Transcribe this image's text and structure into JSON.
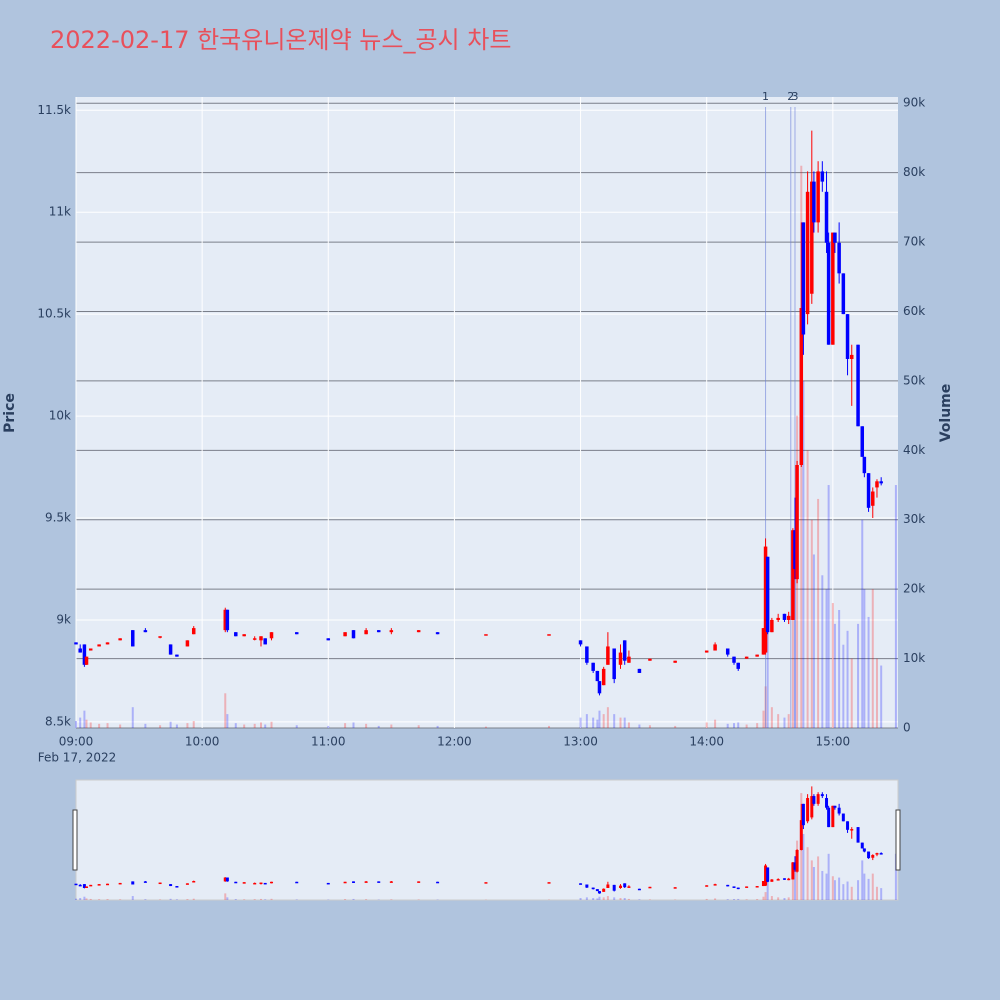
{
  "chart_data": {
    "type": "candlestick",
    "title": "2022-02-17 한국유니온제약 뉴스_공시 차트",
    "y_label": "Price",
    "y2_label": "Volume",
    "x_date_label": "Feb 17, 2022",
    "up_color": "#ff0000",
    "down_color": "#0000ff",
    "xlim": [
      "2022-02-17 09:00",
      "2022-02-17 15:31"
    ],
    "xticks": [
      {
        "value": "2022-02-17 09:00",
        "label": "09:00"
      },
      {
        "value": "2022-02-17 10:00",
        "label": "10:00"
      },
      {
        "value": "2022-02-17 11:00",
        "label": "11:00"
      },
      {
        "value": "2022-02-17 12:00",
        "label": "12:00"
      },
      {
        "value": "2022-02-17 13:00",
        "label": "13:00"
      },
      {
        "value": "2022-02-17 14:00",
        "label": "14:00"
      },
      {
        "value": "2022-02-17 15:00",
        "label": "15:00"
      }
    ],
    "ylim": [
      8470,
      11565
    ],
    "yticks": [
      {
        "value": 8500,
        "label": "8.5k"
      },
      {
        "value": 9000,
        "label": "9k"
      },
      {
        "value": 9500,
        "label": "9.5k"
      },
      {
        "value": 10000,
        "label": "10k"
      },
      {
        "value": 10500,
        "label": "10.5k"
      },
      {
        "value": 11000,
        "label": "11k"
      },
      {
        "value": 11500,
        "label": "11.5k"
      }
    ],
    "y2lim": [
      0,
      90900
    ],
    "y2ticks": [
      0,
      {
        "value": 10000,
        "label": "10k"
      },
      {
        "value": 20000,
        "label": "20k"
      },
      {
        "value": 30000,
        "label": "30k"
      },
      {
        "value": 40000,
        "label": "40k"
      },
      {
        "value": 50000,
        "label": "50k"
      },
      {
        "value": 60000,
        "label": "60k"
      },
      {
        "value": 70000,
        "label": "70k"
      },
      {
        "value": 80000,
        "label": "80k"
      },
      {
        "value": 90000,
        "label": "90k"
      }
    ],
    "x": [
      "2022-02-17 09:00",
      "2022-02-17 09:02",
      "2022-02-17 09:04",
      "2022-02-17 09:05",
      "2022-02-17 09:07",
      "2022-02-17 09:11",
      "2022-02-17 09:15",
      "2022-02-17 09:21",
      "2022-02-17 09:27",
      "2022-02-17 09:33",
      "2022-02-17 09:40",
      "2022-02-17 09:45",
      "2022-02-17 09:48",
      "2022-02-17 09:53",
      "2022-02-17 09:56",
      "2022-02-17 10:11",
      "2022-02-17 10:12",
      "2022-02-17 10:16",
      "2022-02-17 10:20",
      "2022-02-17 10:25",
      "2022-02-17 10:28",
      "2022-02-17 10:30",
      "2022-02-17 10:33",
      "2022-02-17 10:45",
      "2022-02-17 11:00",
      "2022-02-17 11:08",
      "2022-02-17 11:12",
      "2022-02-17 11:18",
      "2022-02-17 11:24",
      "2022-02-17 11:30",
      "2022-02-17 11:43",
      "2022-02-17 11:52",
      "2022-02-17 12:15",
      "2022-02-17 12:45",
      "2022-02-17 13:00",
      "2022-02-17 13:03",
      "2022-02-17 13:06",
      "2022-02-17 13:08",
      "2022-02-17 13:09",
      "2022-02-17 13:11",
      "2022-02-17 13:13",
      "2022-02-17 13:16",
      "2022-02-17 13:19",
      "2022-02-17 13:21",
      "2022-02-17 13:23",
      "2022-02-17 13:28",
      "2022-02-17 13:33",
      "2022-02-17 13:45",
      "2022-02-17 14:00",
      "2022-02-17 14:04",
      "2022-02-17 14:10",
      "2022-02-17 14:13",
      "2022-02-17 14:15",
      "2022-02-17 14:19",
      "2022-02-17 14:24",
      "2022-02-17 14:27",
      "2022-02-17 14:28",
      "2022-02-17 14:29",
      "2022-02-17 14:31",
      "2022-02-17 14:34",
      "2022-02-17 14:37",
      "2022-02-17 14:39",
      "2022-02-17 14:41",
      "2022-02-17 14:42",
      "2022-02-17 14:43",
      "2022-02-17 14:45",
      "2022-02-17 14:46",
      "2022-02-17 14:48",
      "2022-02-17 14:50",
      "2022-02-17 14:51",
      "2022-02-17 14:53",
      "2022-02-17 14:55",
      "2022-02-17 14:57",
      "2022-02-17 14:58",
      "2022-02-17 15:00",
      "2022-02-17 15:01",
      "2022-02-17 15:03",
      "2022-02-17 15:05",
      "2022-02-17 15:07",
      "2022-02-17 15:09",
      "2022-02-17 15:12",
      "2022-02-17 15:14",
      "2022-02-17 15:15",
      "2022-02-17 15:17",
      "2022-02-17 15:19",
      "2022-02-17 15:21",
      "2022-02-17 15:23"
    ],
    "open": [
      8890,
      8860,
      8880,
      8780,
      8850,
      8870,
      8880,
      8900,
      8950,
      8950,
      8920,
      8880,
      8830,
      8870,
      8930,
      8950,
      9050,
      8940,
      8920,
      8910,
      8900,
      8910,
      8910,
      8940,
      8910,
      8920,
      8950,
      8930,
      8950,
      8940,
      8940,
      8940,
      8930,
      8930,
      8900,
      8870,
      8790,
      8750,
      8700,
      8680,
      8780,
      8860,
      8780,
      8900,
      8790,
      8760,
      8800,
      8790,
      8840,
      8850,
      8860,
      8820,
      8790,
      8810,
      8820,
      8830,
      8840,
      9310,
      8940,
      9000,
      9030,
      9000,
      9000,
      9440,
      9200,
      9760,
      10950,
      10500,
      10600,
      11150,
      10950,
      11200,
      11100,
      10850,
      10350,
      10900,
      10850,
      10700,
      10500,
      10280,
      10350,
      9950,
      9800,
      9720,
      9560,
      9650,
      9680
    ],
    "high": [
      8890,
      8880,
      8880,
      8820,
      8860,
      8880,
      8890,
      8910,
      8950,
      8960,
      8920,
      8880,
      8830,
      8900,
      8970,
      9060,
      9050,
      8940,
      8930,
      8920,
      8920,
      8910,
      8940,
      8940,
      8910,
      8940,
      8950,
      8960,
      8950,
      8960,
      8950,
      8940,
      8930,
      8930,
      8900,
      8870,
      8790,
      8750,
      8700,
      8770,
      8940,
      8860,
      8880,
      8900,
      8850,
      8760,
      8810,
      8800,
      8850,
      8890,
      8860,
      8820,
      8790,
      8820,
      8830,
      8960,
      9400,
      9310,
      9010,
      9030,
      9030,
      9040,
      9450,
      9600,
      9780,
      10950,
      10950,
      11200,
      11400,
      11200,
      11250,
      11250,
      11200,
      10900,
      10900,
      10900,
      10950,
      10700,
      10500,
      10350,
      10350,
      9950,
      9800,
      9720,
      9650,
      9690,
      9700
    ],
    "low": [
      8880,
      8840,
      8770,
      8780,
      8850,
      8870,
      8880,
      8900,
      8870,
      8940,
      8910,
      8830,
      8820,
      8870,
      8930,
      8940,
      8940,
      8920,
      8920,
      8900,
      8870,
      8880,
      8900,
      8930,
      8900,
      8920,
      8910,
      8930,
      8940,
      8930,
      8940,
      8930,
      8930,
      8930,
      8870,
      8780,
      8740,
      8700,
      8630,
      8680,
      8780,
      8690,
      8760,
      8780,
      8790,
      8740,
      8800,
      8790,
      8840,
      8850,
      8820,
      8780,
      8750,
      8810,
      8820,
      8830,
      8830,
      8930,
      8940,
      8990,
      8990,
      8980,
      9000,
      9200,
      9180,
      9750,
      10300,
      10450,
      10550,
      10900,
      10900,
      11100,
      10800,
      10350,
      10350,
      10800,
      10650,
      10500,
      10200,
      10050,
      9950,
      9800,
      9700,
      9530,
      9500,
      9600,
      9660
    ],
    "close": [
      8880,
      8840,
      8780,
      8820,
      8860,
      8880,
      8890,
      8910,
      8870,
      8940,
      8920,
      8830,
      8820,
      8900,
      8960,
      9050,
      8950,
      8920,
      8930,
      8910,
      8920,
      8880,
      8940,
      8930,
      8900,
      8940,
      8910,
      8950,
      8940,
      8950,
      8950,
      8930,
      8930,
      8930,
      8880,
      8790,
      8750,
      8700,
      8640,
      8760,
      8870,
      8710,
      8840,
      8800,
      8820,
      8740,
      8810,
      8800,
      8850,
      8880,
      8830,
      8790,
      8760,
      8820,
      8830,
      8960,
      9360,
      8940,
      9000,
      9010,
      9000,
      9020,
      9440,
      9250,
      9760,
      10530,
      10400,
      11100,
      11150,
      10950,
      11200,
      11150,
      10850,
      10350,
      10900,
      10850,
      10700,
      10500,
      10280,
      10300,
      9950,
      9800,
      9720,
      9550,
      9630,
      9680,
      9670
    ],
    "volume": [
      1000,
      1500,
      2500,
      1200,
      800,
      600,
      700,
      500,
      3000,
      600,
      400,
      900,
      500,
      700,
      1000,
      5000,
      2000,
      700,
      500,
      600,
      800,
      500,
      900,
      400,
      300,
      700,
      800,
      600,
      300,
      500,
      400,
      300,
      200,
      300,
      1500,
      2000,
      1500,
      1200,
      2500,
      2000,
      3000,
      2000,
      1500,
      1500,
      800,
      500,
      400,
      300,
      800,
      1200,
      600,
      700,
      800,
      500,
      700,
      2500,
      6000,
      14000,
      3000,
      2000,
      1500,
      2000,
      22000,
      28000,
      45000,
      81000,
      50000,
      40000,
      30000,
      25000,
      33000,
      22000,
      20000,
      35000,
      18000,
      15000,
      17000,
      12000,
      14000,
      10000,
      15000,
      30000,
      20000,
      16000,
      20000,
      10000,
      9000
    ],
    "closing_auction": {
      "x": "2022-02-17 15:30",
      "volume": 35000
    },
    "annotations": [
      {
        "x": "2022-02-17 14:28",
        "label": "1"
      },
      {
        "x": "2022-02-17 14:40",
        "label": "2"
      },
      {
        "x": "2022-02-17 14:42",
        "label": "3"
      }
    ]
  }
}
